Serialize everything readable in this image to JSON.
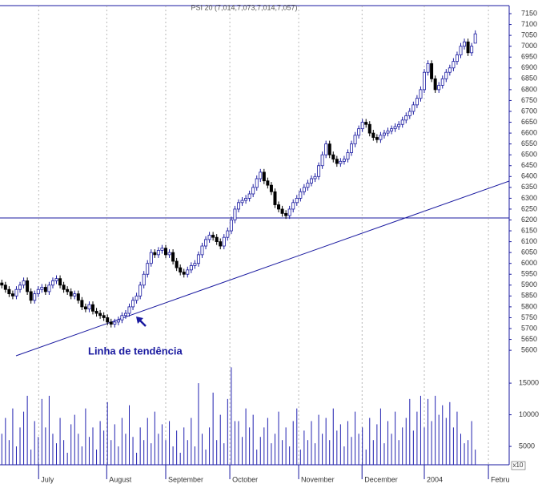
{
  "chart_data": {
    "type": "candlestick",
    "title": "PSI 20 (7,014,7,073,7,014,7,057)",
    "annotation": "Linha de tendência",
    "volume_label": "x10",
    "up_color": "#1a1aa0",
    "down_color": "#000000",
    "volume_color": "#2020b0",
    "xlim": [
      -0.5,
      139.3
    ],
    "xticks": [
      {
        "value": 10.1,
        "label": "July"
      },
      {
        "value": 28.8,
        "label": "August"
      },
      {
        "value": 45,
        "label": "September"
      },
      {
        "value": 62.6,
        "label": "October"
      },
      {
        "value": 81.5,
        "label": "November"
      },
      {
        "value": 98.9,
        "label": "December"
      },
      {
        "value": 116,
        "label": "2004"
      },
      {
        "value": 133.6,
        "label": "Febru"
      }
    ],
    "ylim": [
      5534,
      7187
    ],
    "yticks": [
      5600,
      5650,
      5700,
      5750,
      5800,
      5850,
      5900,
      5950,
      6000,
      6050,
      6100,
      6150,
      6200,
      6250,
      6300,
      6350,
      6400,
      6450,
      6500,
      6550,
      6600,
      6650,
      6700,
      6750,
      6800,
      6850,
      6900,
      6950,
      7000,
      7050,
      7100,
      7150
    ],
    "volume_ylim": [
      2100,
      17800
    ],
    "volume_yticks": [
      5000,
      10000,
      15000
    ],
    "open": [
      5910,
      5900,
      5880,
      5860,
      5850,
      5880,
      5900,
      5920,
      5870,
      5830,
      5860,
      5880,
      5890,
      5870,
      5900,
      5920,
      5930,
      5900,
      5880,
      5870,
      5850,
      5860,
      5830,
      5800,
      5790,
      5810,
      5780,
      5770,
      5760,
      5750,
      5730,
      5720,
      5730,
      5740,
      5760,
      5770,
      5800,
      5830,
      5850,
      5900,
      5950,
      6000,
      6050,
      6040,
      6060,
      6070,
      6040,
      6050,
      6010,
      5980,
      5960,
      5950,
      5970,
      5990,
      6000,
      6040,
      6080,
      6110,
      6130,
      6120,
      6100,
      6080,
      6120,
      6150,
      6200,
      6250,
      6280,
      6290,
      6300,
      6320,
      6350,
      6390,
      6420,
      6380,
      6360,
      6330,
      6270,
      6250,
      6230,
      6220,
      6250,
      6280,
      6300,
      6330,
      6350,
      6370,
      6390,
      6400,
      6450,
      6500,
      6550,
      6500,
      6480,
      6460,
      6470,
      6480,
      6510,
      6550,
      6590,
      6620,
      6650,
      6640,
      6600,
      6580,
      6570,
      6590,
      6600,
      6610,
      6620,
      6630,
      6640,
      6660,
      6680,
      6700,
      6730,
      6760,
      6800,
      6880,
      6920,
      6850,
      6800,
      6820,
      6850,
      6880,
      6900,
      6930,
      6960,
      7000,
      7020,
      6970,
      7014
    ],
    "high": [
      5925,
      5915,
      5895,
      5875,
      5895,
      5915,
      5935,
      5935,
      5885,
      5875,
      5895,
      5905,
      5905,
      5915,
      5935,
      5945,
      5945,
      5915,
      5895,
      5885,
      5875,
      5875,
      5845,
      5815,
      5825,
      5825,
      5795,
      5785,
      5775,
      5765,
      5745,
      5745,
      5755,
      5775,
      5785,
      5815,
      5845,
      5865,
      5915,
      5965,
      6015,
      6065,
      6065,
      6075,
      6085,
      6085,
      6065,
      6065,
      6025,
      5995,
      5975,
      5985,
      6005,
      6015,
      6055,
      6095,
      6125,
      6145,
      6145,
      6135,
      6115,
      6135,
      6165,
      6215,
      6265,
      6295,
      6305,
      6315,
      6335,
      6365,
      6405,
      6435,
      6435,
      6395,
      6375,
      6345,
      6285,
      6265,
      6245,
      6265,
      6295,
      6315,
      6345,
      6365,
      6385,
      6405,
      6415,
      6465,
      6515,
      6565,
      6565,
      6515,
      6495,
      6485,
      6495,
      6525,
      6565,
      6605,
      6635,
      6665,
      6665,
      6655,
      6615,
      6595,
      6605,
      6615,
      6625,
      6635,
      6645,
      6655,
      6675,
      6695,
      6715,
      6745,
      6775,
      6815,
      6895,
      6935,
      6935,
      6865,
      6835,
      6865,
      6895,
      6915,
      6945,
      6975,
      7015,
      7035,
      7035,
      7015,
      7073
    ],
    "low": [
      5885,
      5865,
      5845,
      5835,
      5835,
      5865,
      5885,
      5855,
      5815,
      5815,
      5845,
      5865,
      5855,
      5855,
      5885,
      5905,
      5885,
      5865,
      5855,
      5835,
      5835,
      5815,
      5785,
      5775,
      5775,
      5765,
      5755,
      5745,
      5735,
      5715,
      5705,
      5705,
      5715,
      5725,
      5745,
      5755,
      5785,
      5815,
      5835,
      5885,
      5935,
      5985,
      6025,
      6025,
      6045,
      6025,
      6025,
      5995,
      5965,
      5945,
      5935,
      5935,
      5955,
      5975,
      5985,
      6025,
      6065,
      6095,
      6105,
      6085,
      6065,
      6065,
      6105,
      6135,
      6185,
      6235,
      6265,
      6275,
      6285,
      6305,
      6335,
      6375,
      6365,
      6345,
      6315,
      6255,
      6235,
      6215,
      6205,
      6205,
      6235,
      6265,
      6285,
      6315,
      6335,
      6355,
      6375,
      6385,
      6435,
      6485,
      6485,
      6465,
      6445,
      6445,
      6455,
      6465,
      6495,
      6535,
      6575,
      6605,
      6625,
      6585,
      6565,
      6555,
      6555,
      6575,
      6585,
      6595,
      6605,
      6615,
      6625,
      6645,
      6665,
      6685,
      6715,
      6745,
      6785,
      6865,
      6835,
      6785,
      6785,
      6805,
      6835,
      6865,
      6885,
      6915,
      6945,
      6985,
      6955,
      6955,
      7014
    ],
    "close": [
      5900,
      5880,
      5860,
      5850,
      5880,
      5900,
      5920,
      5870,
      5830,
      5860,
      5880,
      5890,
      5870,
      5900,
      5920,
      5930,
      5900,
      5880,
      5870,
      5850,
      5860,
      5830,
      5800,
      5790,
      5810,
      5780,
      5770,
      5760,
      5750,
      5730,
      5720,
      5730,
      5740,
      5760,
      5770,
      5800,
      5830,
      5850,
      5900,
      5950,
      6000,
      6050,
      6040,
      6060,
      6070,
      6040,
      6050,
      6010,
      5980,
      5960,
      5950,
      5970,
      5990,
      6000,
      6040,
      6080,
      6110,
      6130,
      6120,
      6100,
      6080,
      6120,
      6150,
      6200,
      6250,
      6280,
      6290,
      6300,
      6320,
      6350,
      6390,
      6420,
      6380,
      6360,
      6330,
      6270,
      6250,
      6230,
      6220,
      6250,
      6280,
      6300,
      6330,
      6350,
      6370,
      6390,
      6400,
      6450,
      6500,
      6550,
      6500,
      6480,
      6460,
      6470,
      6480,
      6510,
      6550,
      6590,
      6620,
      6650,
      6640,
      6600,
      6580,
      6570,
      6590,
      6600,
      6610,
      6620,
      6630,
      6640,
      6660,
      6680,
      6700,
      6730,
      6760,
      6800,
      6880,
      6920,
      6850,
      6800,
      6820,
      6850,
      6880,
      6900,
      6930,
      6960,
      7000,
      7020,
      6970,
      7000,
      7057
    ],
    "volume": [
      7000,
      9500,
      6000,
      11000,
      5000,
      8000,
      10500,
      13000,
      4500,
      9000,
      6500,
      12500,
      8000,
      13000,
      7000,
      5500,
      9500,
      6000,
      4000,
      8500,
      10000,
      7000,
      5000,
      11000,
      6500,
      8000,
      4500,
      9000,
      7500,
      12000,
      6000,
      8500,
      5000,
      9500,
      7000,
      11500,
      6500,
      4000,
      8000,
      6000,
      9500,
      5500,
      10500,
      7000,
      8500,
      6000,
      9000,
      5000,
      7500,
      4000,
      8000,
      6000,
      9500,
      5000,
      15000,
      7000,
      4500,
      8000,
      13500,
      6000,
      10000,
      5500,
      12500,
      17500,
      9000,
      9000,
      6500,
      11000,
      8000,
      10000,
      4500,
      6500,
      8000,
      9500,
      5500,
      7000,
      10500,
      6000,
      8000,
      5000,
      9000,
      11000,
      4500,
      7500,
      6000,
      9000,
      5500,
      10000,
      7000,
      9500,
      6000,
      11000,
      7500,
      8500,
      5000,
      9000,
      6500,
      10500,
      7000,
      8000,
      4500,
      9500,
      6000,
      8500,
      11000,
      5500,
      9000,
      7000,
      10500,
      6000,
      8000,
      9500,
      12500,
      7500,
      10500,
      13000,
      8000,
      12500,
      9000,
      13000,
      10000,
      11500,
      9500,
      12000,
      8000,
      10500,
      7000,
      5500,
      6000,
      9000,
      4500
    ]
  }
}
